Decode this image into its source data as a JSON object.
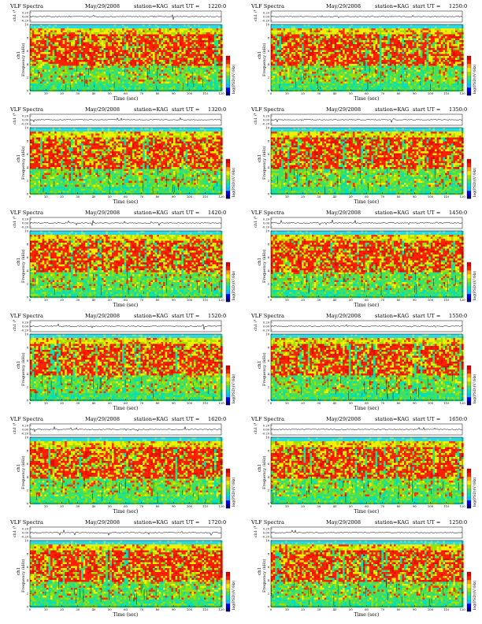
{
  "page": {
    "title": "VLF Spectra",
    "date": "May/29/2008",
    "station": "station=KAG"
  },
  "common": {
    "header_prefix": "VLF Spectra",
    "start_label": "start  UT =",
    "top_axis_label": "ch1 (V)",
    "top_axis_ticks": [
      "0.20",
      "0.00",
      "-0.20"
    ],
    "freq_label": "Frequency (kHz)",
    "freq_ticks": [
      "0",
      "2",
      "4",
      "6",
      "8",
      "10"
    ],
    "x_label": "Time (sec)",
    "x_ticks": [
      "0",
      "10",
      "20",
      "30",
      "40",
      "50",
      "60",
      "70",
      "80",
      "90",
      "100",
      "110",
      "120"
    ],
    "colorbar_label": "log(PSD)(V²/Hz)",
    "colorbar_colors": [
      "#000080",
      "#0000ff",
      "#00c0ff",
      "#00e0c0",
      "#40e060",
      "#a0e000",
      "#f0f000",
      "#ffa000",
      "#ff2000",
      "#e00000"
    ]
  },
  "chart_data": [
    {
      "type": "heatmap",
      "title": "VLF Spectra",
      "date": "May/29/2008",
      "station": "station=KAG",
      "start_ut": "1220:0",
      "xlabel": "Time (sec)",
      "ylabel": "Frequency (kHz)",
      "xlim": [
        0,
        120
      ],
      "ylim": [
        0,
        10
      ],
      "top_trace_ylabel": "ch1 (V)",
      "colorbar_label": "log(PSD)(V²/Hz)"
    },
    {
      "type": "heatmap",
      "title": "VLF Spectra",
      "date": "May/29/2008",
      "station": "station=KAG",
      "start_ut": "1250:0",
      "xlabel": "Time (sec)",
      "ylabel": "Frequency (kHz)",
      "xlim": [
        0,
        120
      ],
      "ylim": [
        0,
        10
      ],
      "top_trace_ylabel": "ch1 (V)",
      "colorbar_label": "log(PSD)(V²/Hz)"
    },
    {
      "type": "heatmap",
      "title": "VLF Spectra",
      "date": "May/29/2008",
      "station": "station=KAG",
      "start_ut": "1320:0",
      "xlabel": "Time (sec)",
      "ylabel": "Frequency (kHz)",
      "xlim": [
        0,
        120
      ],
      "ylim": [
        0,
        10
      ],
      "top_trace_ylabel": "ch1 (V)",
      "colorbar_label": "log(PSD)(V²/Hz)"
    },
    {
      "type": "heatmap",
      "title": "VLF Spectra",
      "date": "May/29/2008",
      "station": "station=KAG",
      "start_ut": "1350:0",
      "xlabel": "Time (sec)",
      "ylabel": "Frequency (kHz)",
      "xlim": [
        0,
        120
      ],
      "ylim": [
        0,
        10
      ],
      "top_trace_ylabel": "ch1 (V)",
      "colorbar_label": "log(PSD)(V²/Hz)"
    },
    {
      "type": "heatmap",
      "title": "VLF Spectra",
      "date": "May/29/2008",
      "station": "station=KAG",
      "start_ut": "1420:0",
      "xlabel": "Time (sec)",
      "ylabel": "Frequency (kHz)",
      "xlim": [
        0,
        120
      ],
      "ylim": [
        0,
        10
      ],
      "top_trace_ylabel": "ch1 (V)",
      "colorbar_label": "log(PSD)(V²/Hz)"
    },
    {
      "type": "heatmap",
      "title": "VLF Spectra",
      "date": "May/29/2008",
      "station": "station=KAG",
      "start_ut": "1450:0",
      "xlabel": "Time (sec)",
      "ylabel": "Frequency (kHz)",
      "xlim": [
        0,
        120
      ],
      "ylim": [
        0,
        10
      ],
      "top_trace_ylabel": "ch1 (V)",
      "colorbar_label": "log(PSD)(V²/Hz)"
    },
    {
      "type": "heatmap",
      "title": "VLF Spectra",
      "date": "May/29/2008",
      "station": "station=KAG",
      "start_ut": "1520:0",
      "xlabel": "Time (sec)",
      "ylabel": "Frequency (kHz)",
      "xlim": [
        0,
        120
      ],
      "ylim": [
        0,
        10
      ],
      "top_trace_ylabel": "ch1 (V)",
      "colorbar_label": "log(PSD)(V²/Hz)"
    },
    {
      "type": "heatmap",
      "title": "VLF Spectra",
      "date": "May/29/2008",
      "station": "station=KAG",
      "start_ut": "1550:0",
      "xlabel": "Time (sec)",
      "ylabel": "Frequency (kHz)",
      "xlim": [
        0,
        120
      ],
      "ylim": [
        0,
        10
      ],
      "top_trace_ylabel": "ch1 (V)",
      "colorbar_label": "log(PSD)(V²/Hz)"
    },
    {
      "type": "heatmap",
      "title": "VLF Spectra",
      "date": "May/29/2008",
      "station": "station=KAG",
      "start_ut": "1620:0",
      "xlabel": "Time (sec)",
      "ylabel": "Frequency (kHz)",
      "xlim": [
        0,
        120
      ],
      "ylim": [
        0,
        10
      ],
      "top_trace_ylabel": "ch1 (V)",
      "colorbar_label": "log(PSD)(V²/Hz)"
    },
    {
      "type": "heatmap",
      "title": "VLF Spectra",
      "date": "May/29/2008",
      "station": "station=KAG",
      "start_ut": "1650:0",
      "xlabel": "Time (sec)",
      "ylabel": "Frequency (kHz)",
      "xlim": [
        0,
        120
      ],
      "ylim": [
        0,
        10
      ],
      "top_trace_ylabel": "ch1 (V)",
      "colorbar_label": "log(PSD)(V²/Hz)"
    },
    {
      "type": "heatmap",
      "title": "VLF Spectra",
      "date": "May/29/2008",
      "station": "station=KAG",
      "start_ut": "1720:0",
      "xlabel": "Time (sec)",
      "ylabel": "Frequency (kHz)",
      "xlim": [
        0,
        120
      ],
      "ylim": [
        0,
        10
      ],
      "top_trace_ylabel": "ch1 (V)",
      "colorbar_label": "log(PSD)(V²/Hz)"
    },
    {
      "type": "heatmap",
      "title": "VLF Spectra",
      "date": "May/29/2008",
      "station": "station=KAG",
      "start_ut": "1250:0",
      "xlabel": "Time (sec)",
      "ylabel": "Frequency (kHz)",
      "xlim": [
        0,
        120
      ],
      "ylim": [
        0,
        10
      ],
      "top_trace_ylabel": "ch1 (V)",
      "colorbar_label": "log(PSD)(V²/Hz)"
    }
  ]
}
